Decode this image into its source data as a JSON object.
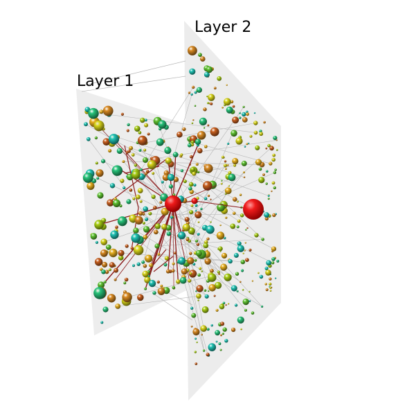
{
  "layers": [
    {
      "label": "Layer 1"
    },
    {
      "label": "Layer 2"
    }
  ],
  "colors": {
    "background": "#ffffff",
    "plane": "#ececec",
    "interlayer_line": "#b5b5b5",
    "intralayer_edge": "#8b1c1c",
    "hub_node": "#e30000",
    "node_palette": [
      "#1fc4b5",
      "#27c47a",
      "#5fc431",
      "#a9cf14",
      "#d9d61a",
      "#e8b020",
      "#d98a22",
      "#c9601f"
    ]
  },
  "node_shape": "sphere"
}
